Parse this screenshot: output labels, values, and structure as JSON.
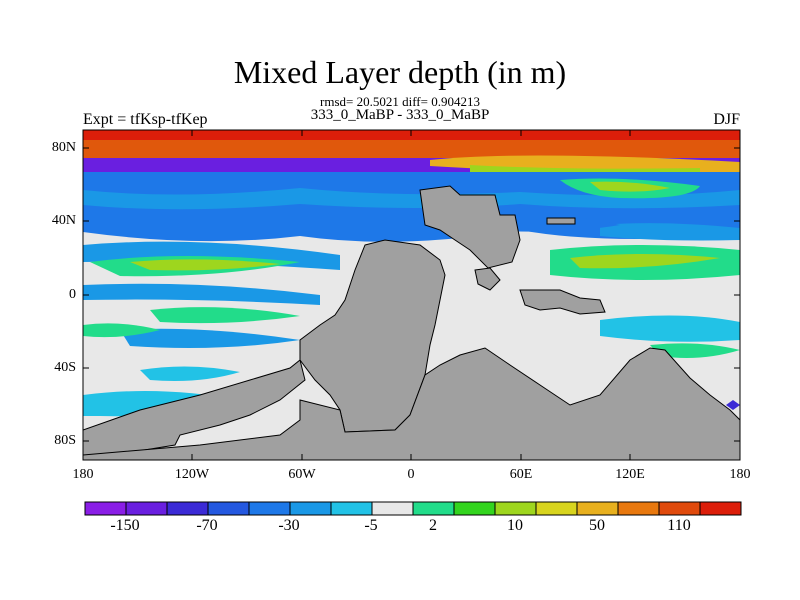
{
  "plot": {
    "title": "Mixed Layer depth (in m)",
    "stats": "rmsd= 20.5021 diff= 0.904213",
    "center_label": "333_0_MaBP - 333_0_MaBP",
    "left_label": "Expt = tfKsp-tfKep",
    "right_label": "DJF"
  },
  "axes": {
    "lat_ticks": [
      "80N",
      "40N",
      "0",
      "40S",
      "80S"
    ],
    "lon_ticks": [
      "180",
      "120W",
      "60W",
      "0",
      "60E",
      "120E",
      "180"
    ]
  },
  "colorbar": {
    "colors": [
      "#8a1ee6",
      "#6a1fe0",
      "#3b2ad6",
      "#2458e0",
      "#1e78e8",
      "#1a98e6",
      "#22c2e6",
      "#e8e8e8",
      "#22dc8a",
      "#33d41e",
      "#9ed61e",
      "#d8d41e",
      "#e8b01e",
      "#e8780e",
      "#e04a0c",
      "#dc1e0a"
    ],
    "labels": [
      "-150",
      "-70",
      "-30",
      "-5",
      "2",
      "10",
      "50",
      "110"
    ]
  },
  "colors": {
    "land": "#a0a0a0",
    "ocean_background": "#e8e8e8"
  }
}
